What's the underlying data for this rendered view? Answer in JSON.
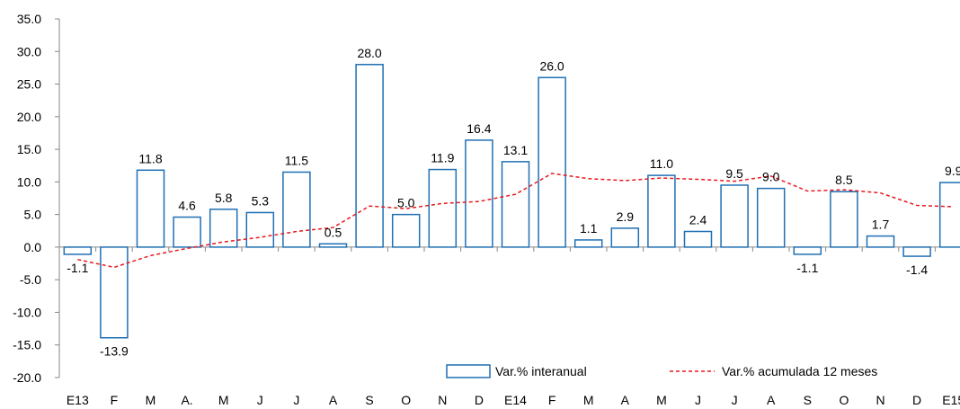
{
  "chart_data": {
    "type": "bar",
    "categories": [
      "E13",
      "F",
      "M",
      "A.",
      "M",
      "J",
      "J",
      "A",
      "S",
      "O",
      "N",
      "D",
      "E14",
      "F",
      "M",
      "A",
      "M",
      "J",
      "J",
      "A",
      "S",
      "O",
      "N",
      "D",
      "E15"
    ],
    "series": [
      {
        "name": "Var.% interanual",
        "type": "bar",
        "values": [
          -1.1,
          -13.9,
          11.8,
          4.6,
          5.8,
          5.3,
          11.5,
          0.5,
          28.0,
          5.0,
          11.9,
          16.4,
          13.1,
          26.0,
          1.1,
          2.9,
          11.0,
          2.4,
          9.5,
          9.0,
          -1.1,
          8.5,
          1.7,
          -1.4,
          9.9
        ],
        "labels": [
          "-1.1",
          "-13.9",
          "11.8",
          "4.6",
          "5.8",
          "5.3",
          "11.5",
          "0.5",
          "28.0",
          "5.0",
          "11.9",
          "16.4",
          "13.1",
          "26.0",
          "1.1",
          "2.9",
          "11.0",
          "2.4",
          "9.5",
          "9.0",
          "-1.1",
          "8.5",
          "1.7",
          "-1.4",
          "9.9"
        ],
        "color": "#1f6fb4"
      },
      {
        "name": "Var.% acumulada 12 meses",
        "type": "line",
        "style": "dashed",
        "values": [
          -1.9,
          -3.1,
          -1.3,
          -0.2,
          0.8,
          1.5,
          2.4,
          3.0,
          6.3,
          5.9,
          6.7,
          7.0,
          8.1,
          11.3,
          10.5,
          10.2,
          10.6,
          10.4,
          10.1,
          10.9,
          8.6,
          8.8,
          8.3,
          6.4,
          6.2
        ],
        "color": "#e8191f"
      }
    ],
    "yticks": [
      "35.0",
      "30.0",
      "25.0",
      "20.0",
      "15.0",
      "10.0",
      "5.0",
      "0.0",
      "-5.0",
      "-10.0",
      "-15.0",
      "-20.0"
    ],
    "ylim": [
      -20,
      35
    ],
    "legend_position": "bottom-right",
    "grid": false
  }
}
